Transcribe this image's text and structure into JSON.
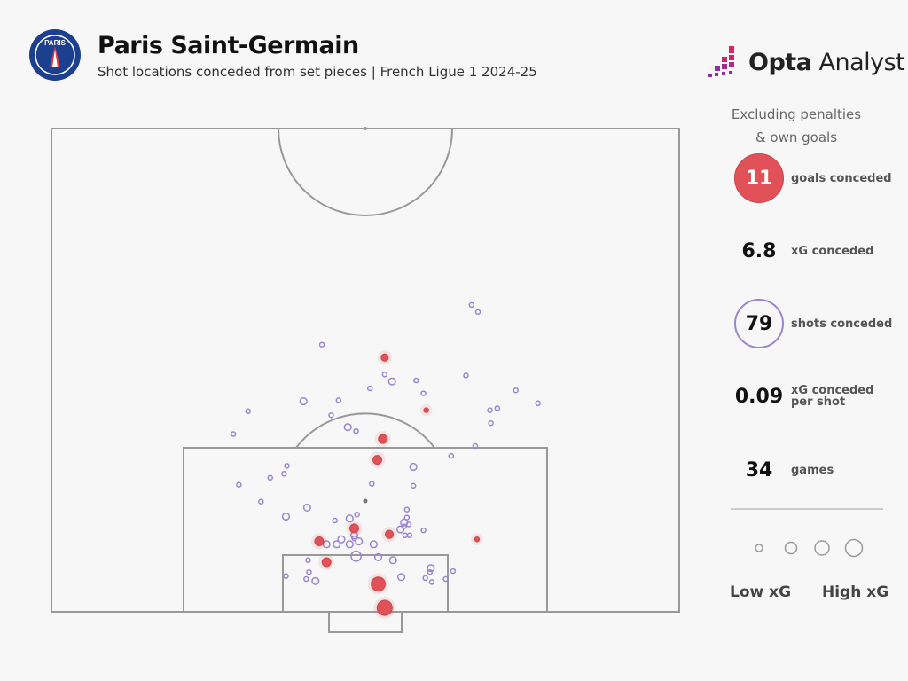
{
  "header": {
    "title": "Paris Saint-Germain",
    "subtitle": "Shot locations conceded from set pieces | French Ligue 1 2024-25",
    "club_crest_text": "PARIS SAINT-GERMAIN"
  },
  "brand": {
    "bold": "Opta",
    "regular": " Analyst"
  },
  "panel": {
    "note_line1": "Excluding penalties",
    "note_line2": "& own goals",
    "stats": [
      {
        "value": "11",
        "label": "goals conceded"
      },
      {
        "value": "6.8",
        "label": "xG conceded"
      },
      {
        "value": "79",
        "label": "shots conceded"
      },
      {
        "value": "0.09",
        "label": "xG conceded per shot"
      },
      {
        "value": "34",
        "label": "games"
      }
    ],
    "legend_low": "Low xG",
    "legend_high": "High xG"
  },
  "colors": {
    "goal": "#e05257",
    "shot": "#9a86d0",
    "pitch_lines": "#999999",
    "background": "#f7f7f7"
  },
  "chart_data": {
    "type": "scatter",
    "legend": [
      "Low xG",
      "High xG"
    ],
    "goals": [
      {
        "x": 36.1,
        "d": 25.6,
        "xg": 0.08
      },
      {
        "x": 40.6,
        "d": 20.3,
        "xg": 0.035
      },
      {
        "x": 35.9,
        "d": 17.4,
        "xg": 0.12
      },
      {
        "x": 35.3,
        "d": 15.3,
        "xg": 0.12
      },
      {
        "x": 32.8,
        "d": 8.4,
        "xg": 0.12
      },
      {
        "x": 36.6,
        "d": 7.8,
        "xg": 0.1
      },
      {
        "x": 29.0,
        "d": 7.1,
        "xg": 0.12
      },
      {
        "x": 29.8,
        "d": 5.0,
        "xg": 0.12
      },
      {
        "x": 46.1,
        "d": 7.3,
        "xg": 0.035
      },
      {
        "x": 35.4,
        "d": 2.8,
        "xg": 0.3
      },
      {
        "x": 36.1,
        "d": 0.4,
        "xg": 0.35
      }
    ],
    "shots": [
      {
        "x": 45.5,
        "d": 30.9,
        "xg": 0.03
      },
      {
        "x": 46.2,
        "d": 30.2,
        "xg": 0.03
      },
      {
        "x": 29.3,
        "d": 26.9,
        "xg": 0.03
      },
      {
        "x": 36.1,
        "d": 23.9,
        "xg": 0.03
      },
      {
        "x": 36.9,
        "d": 23.2,
        "xg": 0.07
      },
      {
        "x": 39.5,
        "d": 23.3,
        "xg": 0.03
      },
      {
        "x": 34.5,
        "d": 22.5,
        "xg": 0.03
      },
      {
        "x": 44.9,
        "d": 23.8,
        "xg": 0.03
      },
      {
        "x": 40.3,
        "d": 22.0,
        "xg": 0.03
      },
      {
        "x": 50.3,
        "d": 22.3,
        "xg": 0.03
      },
      {
        "x": 27.3,
        "d": 21.2,
        "xg": 0.07
      },
      {
        "x": 31.1,
        "d": 21.3,
        "xg": 0.03
      },
      {
        "x": 21.3,
        "d": 20.2,
        "xg": 0.03
      },
      {
        "x": 52.7,
        "d": 21.0,
        "xg": 0.03
      },
      {
        "x": 47.5,
        "d": 20.3,
        "xg": 0.03
      },
      {
        "x": 48.3,
        "d": 20.5,
        "xg": 0.03
      },
      {
        "x": 30.3,
        "d": 19.8,
        "xg": 0.03
      },
      {
        "x": 47.6,
        "d": 19.0,
        "xg": 0.03
      },
      {
        "x": 32.1,
        "d": 18.6,
        "xg": 0.07
      },
      {
        "x": 33.0,
        "d": 18.2,
        "xg": 0.03
      },
      {
        "x": 19.7,
        "d": 17.9,
        "xg": 0.03
      },
      {
        "x": 45.9,
        "d": 16.7,
        "xg": 0.03
      },
      {
        "x": 43.3,
        "d": 15.7,
        "xg": 0.03
      },
      {
        "x": 25.5,
        "d": 14.7,
        "xg": 0.03
      },
      {
        "x": 25.2,
        "d": 13.9,
        "xg": 0.03
      },
      {
        "x": 23.7,
        "d": 13.5,
        "xg": 0.03
      },
      {
        "x": 39.2,
        "d": 14.6,
        "xg": 0.07
      },
      {
        "x": 20.3,
        "d": 12.8,
        "xg": 0.03
      },
      {
        "x": 34.7,
        "d": 12.9,
        "xg": 0.03
      },
      {
        "x": 39.2,
        "d": 12.7,
        "xg": 0.03
      },
      {
        "x": 22.7,
        "d": 11.1,
        "xg": 0.03
      },
      {
        "x": 27.7,
        "d": 10.5,
        "xg": 0.07
      },
      {
        "x": 25.4,
        "d": 9.6,
        "xg": 0.07
      },
      {
        "x": 38.5,
        "d": 10.3,
        "xg": 0.03
      },
      {
        "x": 33.1,
        "d": 9.8,
        "xg": 0.03
      },
      {
        "x": 32.3,
        "d": 9.4,
        "xg": 0.07
      },
      {
        "x": 30.7,
        "d": 9.2,
        "xg": 0.03
      },
      {
        "x": 38.5,
        "d": 9.5,
        "xg": 0.03
      },
      {
        "x": 38.2,
        "d": 9.0,
        "xg": 0.07
      },
      {
        "x": 38.7,
        "d": 8.8,
        "xg": 0.03
      },
      {
        "x": 37.8,
        "d": 8.3,
        "xg": 0.07
      },
      {
        "x": 40.3,
        "d": 8.2,
        "xg": 0.03
      },
      {
        "x": 38.3,
        "d": 7.7,
        "xg": 0.03
      },
      {
        "x": 38.8,
        "d": 7.7,
        "xg": 0.03
      },
      {
        "x": 32.8,
        "d": 7.7,
        "xg": 0.07
      },
      {
        "x": 31.4,
        "d": 7.3,
        "xg": 0.07
      },
      {
        "x": 33.3,
        "d": 7.1,
        "xg": 0.07
      },
      {
        "x": 29.8,
        "d": 6.8,
        "xg": 0.07
      },
      {
        "x": 30.9,
        "d": 6.8,
        "xg": 0.07
      },
      {
        "x": 32.3,
        "d": 6.8,
        "xg": 0.07
      },
      {
        "x": 34.9,
        "d": 6.8,
        "xg": 0.07
      },
      {
        "x": 33.0,
        "d": 5.6,
        "xg": 0.15
      },
      {
        "x": 35.4,
        "d": 5.5,
        "xg": 0.07
      },
      {
        "x": 37.0,
        "d": 5.2,
        "xg": 0.07
      },
      {
        "x": 27.8,
        "d": 5.2,
        "xg": 0.03
      },
      {
        "x": 41.1,
        "d": 4.4,
        "xg": 0.07
      },
      {
        "x": 41.0,
        "d": 4.0,
        "xg": 0.03
      },
      {
        "x": 43.5,
        "d": 4.1,
        "xg": 0.03
      },
      {
        "x": 27.9,
        "d": 4.0,
        "xg": 0.03
      },
      {
        "x": 25.4,
        "d": 3.6,
        "xg": 0.03
      },
      {
        "x": 37.9,
        "d": 3.5,
        "xg": 0.07
      },
      {
        "x": 27.6,
        "d": 3.3,
        "xg": 0.03
      },
      {
        "x": 28.6,
        "d": 3.1,
        "xg": 0.07
      },
      {
        "x": 40.5,
        "d": 3.4,
        "xg": 0.03
      },
      {
        "x": 42.7,
        "d": 3.3,
        "xg": 0.03
      },
      {
        "x": 41.2,
        "d": 3.0,
        "xg": 0.03
      },
      {
        "x": 32.8,
        "d": 7.4,
        "xg": 0.03
      },
      {
        "x": 38.2,
        "d": 8.6,
        "xg": 0.03
      }
    ]
  }
}
